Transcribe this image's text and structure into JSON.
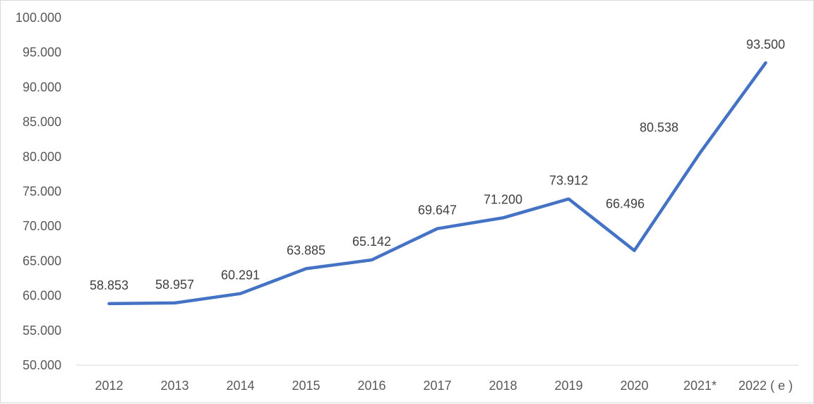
{
  "chart_data": {
    "type": "line",
    "title": "",
    "xlabel": "",
    "ylabel": "",
    "categories": [
      "2012",
      "2013",
      "2014",
      "2015",
      "2016",
      "2017",
      "2018",
      "2019",
      "2020",
      "2021*",
      "2022 ( e )"
    ],
    "series": [
      {
        "values": [
          58853,
          58957,
          60291,
          63885,
          65142,
          69647,
          71200,
          73912,
          66496,
          80538,
          93500
        ],
        "labels": [
          "58.853",
          "58.957",
          "60.291",
          "63.885",
          "65.142",
          "69.647",
          "71.200",
          "73.912",
          "66.496",
          "80.538",
          "93.500"
        ],
        "color": "#4472c4"
      }
    ],
    "ylim": [
      50000,
      100000
    ],
    "y_ticks": [
      {
        "value": 50000,
        "label": "50.000"
      },
      {
        "value": 55000,
        "label": "55.000"
      },
      {
        "value": 60000,
        "label": "60.000"
      },
      {
        "value": 65000,
        "label": "65.000"
      },
      {
        "value": 70000,
        "label": "70.000"
      },
      {
        "value": 75000,
        "label": "75.000"
      },
      {
        "value": 80000,
        "label": "80.000"
      },
      {
        "value": 85000,
        "label": "85.000"
      },
      {
        "value": 90000,
        "label": "90.000"
      },
      {
        "value": 95000,
        "label": "95.000"
      },
      {
        "value": 100000,
        "label": "100.000"
      }
    ],
    "grid": false,
    "legend": "none",
    "colors": {
      "line": "#4472c4",
      "axis": "#d9d9d9",
      "tick_text": "#595959",
      "label_text": "#404040"
    }
  }
}
